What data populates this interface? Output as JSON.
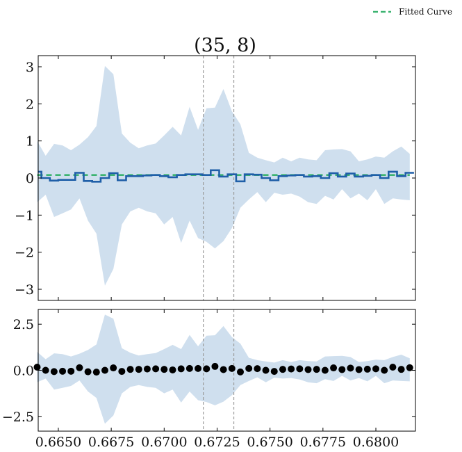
{
  "chart_data": {
    "type": "line",
    "title": "(35, 8)",
    "legend": {
      "position": "top-right",
      "entries": [
        "Fitted Curve"
      ]
    },
    "colors": {
      "data": "#1f5fa8",
      "band": "#cfdfee",
      "fit": "#3cb371",
      "points": "#000000",
      "vline": "#9a9a9a"
    },
    "x": [
      0.664,
      0.6644,
      0.6648,
      0.6652,
      0.6656,
      0.666,
      0.6664,
      0.6668,
      0.6672,
      0.6676,
      0.668,
      0.6684,
      0.6688,
      0.6692,
      0.6696,
      0.67,
      0.6704,
      0.6708,
      0.6712,
      0.6716,
      0.672,
      0.6724,
      0.6728,
      0.6732,
      0.6736,
      0.674,
      0.6744,
      0.6748,
      0.6752,
      0.6756,
      0.676,
      0.6764,
      0.6768,
      0.6772,
      0.6776,
      0.678,
      0.6784,
      0.6788,
      0.6792,
      0.6796,
      0.68,
      0.6804,
      0.6808,
      0.6812,
      0.6816
    ],
    "xlim": [
      0.66405,
      0.68187
    ],
    "xticks": [
      "0.6650",
      "0.6675",
      "0.6700",
      "0.6725",
      "0.6750",
      "0.6775",
      "0.6800"
    ],
    "xtick_values": [
      0.665,
      0.6675,
      0.67,
      0.6725,
      0.675,
      0.6775,
      0.68
    ],
    "vlines": [
      0.67185,
      0.67329
    ],
    "top": {
      "ylim": [
        -3.3,
        3.3
      ],
      "yticks": [
        "3",
        "2",
        "1",
        "0",
        "−1",
        "−2",
        "−3"
      ],
      "ytick_values": [
        3,
        2,
        1,
        0,
        -1,
        -2,
        -3
      ],
      "series": [
        {
          "name": "Fitted Curve",
          "style": "dashed",
          "values": [
            0.08,
            0.08,
            0.08,
            0.08,
            0.08,
            0.08,
            0.08,
            0.08,
            0.08,
            0.08,
            0.08,
            0.08,
            0.08,
            0.08,
            0.08,
            0.08,
            0.08,
            0.08,
            0.08,
            0.08,
            0.08,
            0.08,
            0.08,
            0.08,
            0.08,
            0.08,
            0.08,
            0.08,
            0.08,
            0.08,
            0.08,
            0.08,
            0.08,
            0.08,
            0.08,
            0.08,
            0.08,
            0.08,
            0.08,
            0.08,
            0.08,
            0.08,
            0.08,
            0.08,
            0.08
          ]
        },
        {
          "style": "step",
          "values": [
            0.17,
            0.0,
            -0.07,
            -0.05,
            -0.05,
            0.14,
            -0.08,
            -0.1,
            0.0,
            0.13,
            -0.06,
            0.05,
            0.05,
            0.07,
            0.08,
            0.05,
            0.02,
            0.08,
            0.1,
            0.1,
            0.08,
            0.21,
            0.04,
            0.1,
            -0.09,
            0.1,
            0.09,
            0.0,
            -0.06,
            0.05,
            0.07,
            0.08,
            0.04,
            0.05,
            0.0,
            0.13,
            0.04,
            0.12,
            0.04,
            0.06,
            0.08,
            0.0,
            0.17,
            0.05,
            0.14
          ]
        }
      ],
      "band_upper": [
        1.0,
        0.6,
        0.92,
        0.88,
        0.75,
        0.9,
        1.1,
        1.4,
        3.02,
        2.8,
        1.2,
        0.95,
        0.8,
        0.88,
        0.93,
        1.15,
        1.38,
        1.15,
        1.92,
        1.3,
        1.88,
        1.9,
        2.4,
        1.8,
        1.45,
        0.68,
        0.55,
        0.48,
        0.42,
        0.55,
        0.45,
        0.55,
        0.5,
        0.48,
        0.75,
        0.77,
        0.78,
        0.72,
        0.45,
        0.5,
        0.58,
        0.55,
        0.72,
        0.85,
        0.65
      ],
      "band_lower": [
        -0.65,
        -0.45,
        -1.05,
        -0.95,
        -0.85,
        -0.55,
        -1.15,
        -1.5,
        -2.9,
        -2.45,
        -1.25,
        -0.9,
        -0.8,
        -0.9,
        -0.95,
        -1.25,
        -1.05,
        -1.75,
        -1.15,
        -1.62,
        -1.72,
        -1.9,
        -1.7,
        -1.35,
        -0.8,
        -0.58,
        -0.38,
        -0.65,
        -0.4,
        -0.45,
        -0.42,
        -0.5,
        -0.65,
        -0.7,
        -0.48,
        -0.58,
        -0.3,
        -0.55,
        -0.42,
        -0.6,
        -0.3,
        -0.7,
        -0.55,
        -0.58,
        -0.6
      ]
    },
    "bottom": {
      "ylim": [
        -3.3,
        3.3
      ],
      "yticks": [
        "2.5",
        "0.0",
        "−2.5"
      ],
      "ytick_values": [
        2.5,
        0,
        -2.5
      ],
      "points": [
        0.17,
        0.0,
        -0.07,
        -0.05,
        -0.05,
        0.14,
        -0.08,
        -0.1,
        0.0,
        0.13,
        -0.06,
        0.05,
        0.05,
        0.07,
        0.08,
        0.05,
        0.02,
        0.08,
        0.1,
        0.1,
        0.08,
        0.21,
        0.04,
        0.1,
        -0.09,
        0.1,
        0.09,
        0.0,
        -0.06,
        0.05,
        0.07,
        0.08,
        0.04,
        0.05,
        0.0,
        0.13,
        0.04,
        0.12,
        0.04,
        0.06,
        0.08,
        0.0,
        0.17,
        0.05,
        0.14
      ],
      "band_upper": [
        1.0,
        0.6,
        0.92,
        0.88,
        0.75,
        0.9,
        1.1,
        1.4,
        3.02,
        2.8,
        1.2,
        0.95,
        0.8,
        0.88,
        0.93,
        1.15,
        1.38,
        1.15,
        1.92,
        1.3,
        1.88,
        1.9,
        2.4,
        1.8,
        1.45,
        0.68,
        0.55,
        0.48,
        0.42,
        0.55,
        0.45,
        0.55,
        0.5,
        0.48,
        0.75,
        0.77,
        0.78,
        0.72,
        0.45,
        0.5,
        0.58,
        0.55,
        0.72,
        0.85,
        0.65
      ],
      "band_lower": [
        -0.65,
        -0.45,
        -1.05,
        -0.95,
        -0.85,
        -0.55,
        -1.15,
        -1.5,
        -2.9,
        -2.45,
        -1.25,
        -0.9,
        -0.8,
        -0.9,
        -0.95,
        -1.25,
        -1.05,
        -1.75,
        -1.15,
        -1.62,
        -1.72,
        -1.9,
        -1.7,
        -1.35,
        -0.8,
        -0.58,
        -0.38,
        -0.65,
        -0.4,
        -0.45,
        -0.42,
        -0.5,
        -0.65,
        -0.7,
        -0.48,
        -0.58,
        -0.3,
        -0.55,
        -0.42,
        -0.6,
        -0.3,
        -0.7,
        -0.55,
        -0.58,
        -0.6
      ]
    }
  }
}
